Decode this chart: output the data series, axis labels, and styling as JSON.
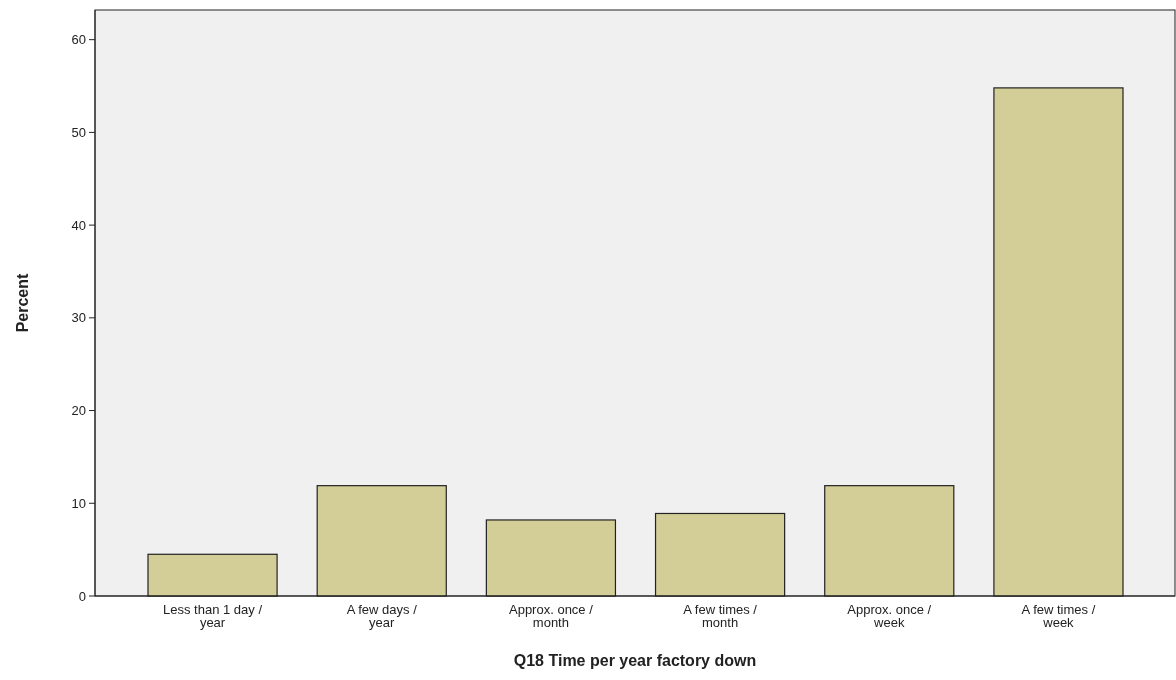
{
  "chart_data": {
    "type": "bar",
    "xlabel": "Q18 Time per year factory down",
    "ylabel": "Percent",
    "categories": [
      "Less than 1 day / year",
      "A few days / year",
      "Approx. once / month",
      "A few times / month",
      "Approx. once / week",
      "A few times / week"
    ],
    "values": [
      4.5,
      11.9,
      8.2,
      8.9,
      11.9,
      54.8
    ],
    "color": "#d3ce97",
    "ylim": [
      0,
      63.2
    ],
    "yticks": [
      0,
      10,
      20,
      30,
      40,
      50,
      60
    ],
    "grid": false
  }
}
